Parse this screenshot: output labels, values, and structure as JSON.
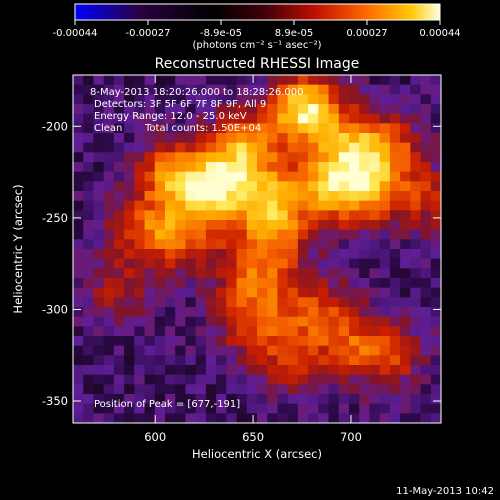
{
  "chart_data": {
    "type": "heatmap",
    "title": "Reconstructed RHESSI Image",
    "xlabel": "Heliocentric X (arcsec)",
    "ylabel": "Heliocentric Y (arcsec)",
    "xlim": [
      558,
      746
    ],
    "ylim": [
      -362,
      -172
    ],
    "xticks": [
      600,
      650,
      700
    ],
    "yticks": [
      -200,
      -250,
      -300,
      -350
    ],
    "colorbar": {
      "ticks": [
        "-0.00044",
        "-0.00027",
        "-8.9e-05",
        "8.9e-05",
        "0.00027",
        "0.00044"
      ],
      "range": [
        -0.00044,
        0.00044
      ],
      "unit_label": "(photons cm⁻² s⁻¹ asec⁻²)",
      "colormap": [
        "#0000ff",
        "#1a0020",
        "#000000",
        "#6a0010",
        "#d01800",
        "#ff6a00",
        "#ffc800",
        "#ffffd0"
      ]
    },
    "grid_cells": 36,
    "peak": [
      677,
      -191
    ],
    "hot_spots": [
      {
        "x": 677,
        "y": -191,
        "intensity": 1.0
      },
      {
        "x": 630,
        "y": -236,
        "intensity": 0.92
      },
      {
        "x": 608,
        "y": -226,
        "intensity": 0.62
      },
      {
        "x": 660,
        "y": -240,
        "intensity": 0.66
      },
      {
        "x": 690,
        "y": -233,
        "intensity": 0.72
      },
      {
        "x": 710,
        "y": -236,
        "intensity": 0.52
      },
      {
        "x": 645,
        "y": -212,
        "intensity": 0.76
      },
      {
        "x": 702,
        "y": -212,
        "intensity": 0.62
      },
      {
        "x": 720,
        "y": -212,
        "intensity": 0.42
      },
      {
        "x": 595,
        "y": -256,
        "intensity": 0.48
      },
      {
        "x": 615,
        "y": -262,
        "intensity": 0.45
      },
      {
        "x": 660,
        "y": -262,
        "intensity": 0.5
      },
      {
        "x": 650,
        "y": -285,
        "intensity": 0.5
      },
      {
        "x": 680,
        "y": -300,
        "intensity": 0.45
      },
      {
        "x": 650,
        "y": -310,
        "intensity": 0.42
      },
      {
        "x": 700,
        "y": -318,
        "intensity": 0.4
      },
      {
        "x": 720,
        "y": -325,
        "intensity": 0.42
      },
      {
        "x": 670,
        "y": -330,
        "intensity": 0.35
      },
      {
        "x": 580,
        "y": -290,
        "intensity": 0.3
      },
      {
        "x": 740,
        "y": -240,
        "intensity": 0.35
      }
    ]
  },
  "annotations": {
    "time_range": "8-May-2013 18:20:26.000 to 18:28:26.000",
    "detectors": "Detectors: 3F 5F 6F 7F 8F 9F, All 9",
    "energy_range": "Energy Range: 12.0 - 25.0 keV",
    "method": "Clean",
    "total_counts": "Total counts: 1.50E+04",
    "peak_position": "Position of Peak = [677,-191]"
  },
  "footer": {
    "timestamp": "11-May-2013 10:42"
  }
}
